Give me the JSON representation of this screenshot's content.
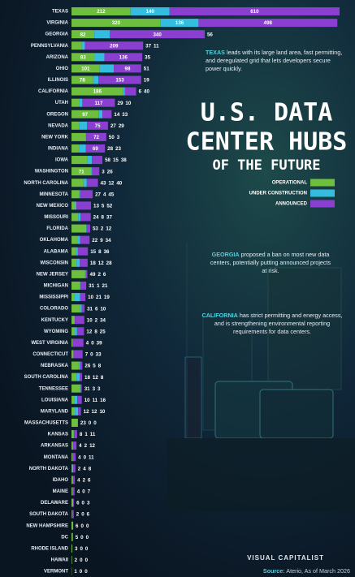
{
  "title_lines": [
    "U.S. DATA",
    "CENTER HUBS",
    "OF THE FUTURE"
  ],
  "annotations": [
    {
      "highlight": "TEXAS",
      "text": "leads with its large land area, fast permitting, and deregulated grid that lets developers secure power quickly."
    },
    {
      "highlight": "GEORGIA",
      "text": "proposed a ban on most new data centers, potentially putting announced projects at risk."
    },
    {
      "highlight": "CALIFORNIA",
      "text": "has strict permitting and energy access, and is strengthening environmental reporting requirements for data centers."
    }
  ],
  "brand": "VISUAL CAPITALIST",
  "source_label": "Source:",
  "source": "Aterio, As of March 2026",
  "chart_data": {
    "type": "stacked-bar-horizontal",
    "categories": [
      "TEXAS",
      "VIRGINIA",
      "GEORGIA",
      "PENNSYLVANIA",
      "ARIZONA",
      "OHIO",
      "ILLINOIS",
      "CALIFORNIA",
      "UTAH",
      "OREGON",
      "NEVADA",
      "NEW YORK",
      "INDIANA",
      "IOWA",
      "WASHINGTON",
      "NORTH CAROLINA",
      "MINNESOTA",
      "NEW MEXICO",
      "MISSOURI",
      "FLORIDA",
      "OKLAHOMA",
      "ALABAMA",
      "WISCONSIN",
      "NEW JERSEY",
      "MICHIGAN",
      "MISSISSIPPI",
      "COLORADO",
      "KENTUCKY",
      "WYOMING",
      "WEST VIRGINIA",
      "CONNECTICUT",
      "NEBRASKA",
      "SOUTH CAROLINA",
      "TENNESSEE",
      "LOUISIANA",
      "MARYLAND",
      "MASSACHUSETTS",
      "KANSAS",
      "ARKANSAS",
      "MONTANA",
      "NORTH DAKOTA",
      "IDAHO",
      "MAINE",
      "DELAWARE",
      "SOUTH DAKOTA",
      "NEW HAMPSHIRE",
      "DC",
      "RHODE ISLAND",
      "HAWAII",
      "VERMONT"
    ],
    "series": [
      {
        "name": "OPERATIONAL",
        "color": "#6fbf3f",
        "values": [
          212,
          320,
          82,
          37,
          83,
          101,
          78,
          186,
          29,
          97,
          27,
          50,
          28,
          58,
          71,
          43,
          27,
          13,
          24,
          53,
          22,
          15,
          18,
          49,
          31,
          10,
          31,
          10,
          12,
          4,
          7,
          26,
          18,
          31,
          10,
          12,
          23,
          8,
          4,
          4,
          2,
          4,
          4,
          6,
          2,
          6,
          5,
          3,
          2,
          1
        ]
      },
      {
        "name": "UNDER CONSTRUCTION",
        "color": "#35bde0",
        "values": [
          140,
          136,
          56,
          11,
          35,
          51,
          19,
          6,
          10,
          14,
          29,
          3,
          23,
          15,
          3,
          12,
          4,
          5,
          8,
          2,
          9,
          8,
          12,
          2,
          1,
          21,
          6,
          2,
          8,
          0,
          0,
          5,
          12,
          3,
          11,
          12,
          0,
          1,
          2,
          0,
          4,
          2,
          0,
          0,
          0,
          0,
          0,
          0,
          0,
          0
        ]
      },
      {
        "name": "ANNOUNCED",
        "color": "#8a3fd0",
        "values": [
          610,
          498,
          340,
          209,
          136,
          98,
          153,
          40,
          117,
          33,
          75,
          72,
          69,
          38,
          26,
          40,
          45,
          52,
          37,
          12,
          34,
          36,
          28,
          6,
          21,
          19,
          10,
          34,
          25,
          39,
          33,
          8,
          8,
          3,
          16,
          10,
          0,
          11,
          12,
          11,
          8,
          6,
          7,
          3,
          6,
          0,
          0,
          0,
          0,
          0
        ]
      }
    ]
  }
}
